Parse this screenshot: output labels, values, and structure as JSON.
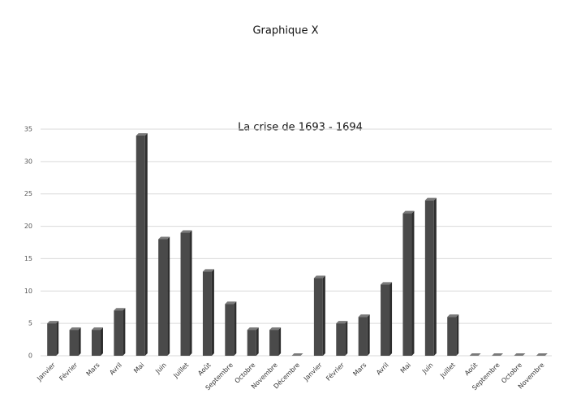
{
  "page_title": "Graphique X",
  "chart_data": {
    "type": "bar",
    "title": "La crise de 1693 - 1694",
    "categories": [
      "Janvier",
      "Février",
      "Mars",
      "Avril",
      "Mai",
      "Juin",
      "Juillet",
      "Août",
      "Septembre",
      "Octobre",
      "Novembre",
      "Décembre",
      "Janvier",
      "Février",
      "Mars",
      "Avril",
      "Mai",
      "Juin",
      "Juillet",
      "Août",
      "Septembre",
      "Octobre",
      "Novembre"
    ],
    "values": [
      5,
      4,
      4,
      7,
      34,
      18,
      19,
      13,
      8,
      4,
      4,
      0,
      12,
      5,
      6,
      11,
      22,
      24,
      6,
      0,
      0,
      0,
      0
    ],
    "color": "#4a4a4a",
    "ylim": [
      0,
      35
    ],
    "yticks": [
      0,
      5,
      10,
      15,
      20,
      25,
      30,
      35
    ],
    "grid": true
  }
}
